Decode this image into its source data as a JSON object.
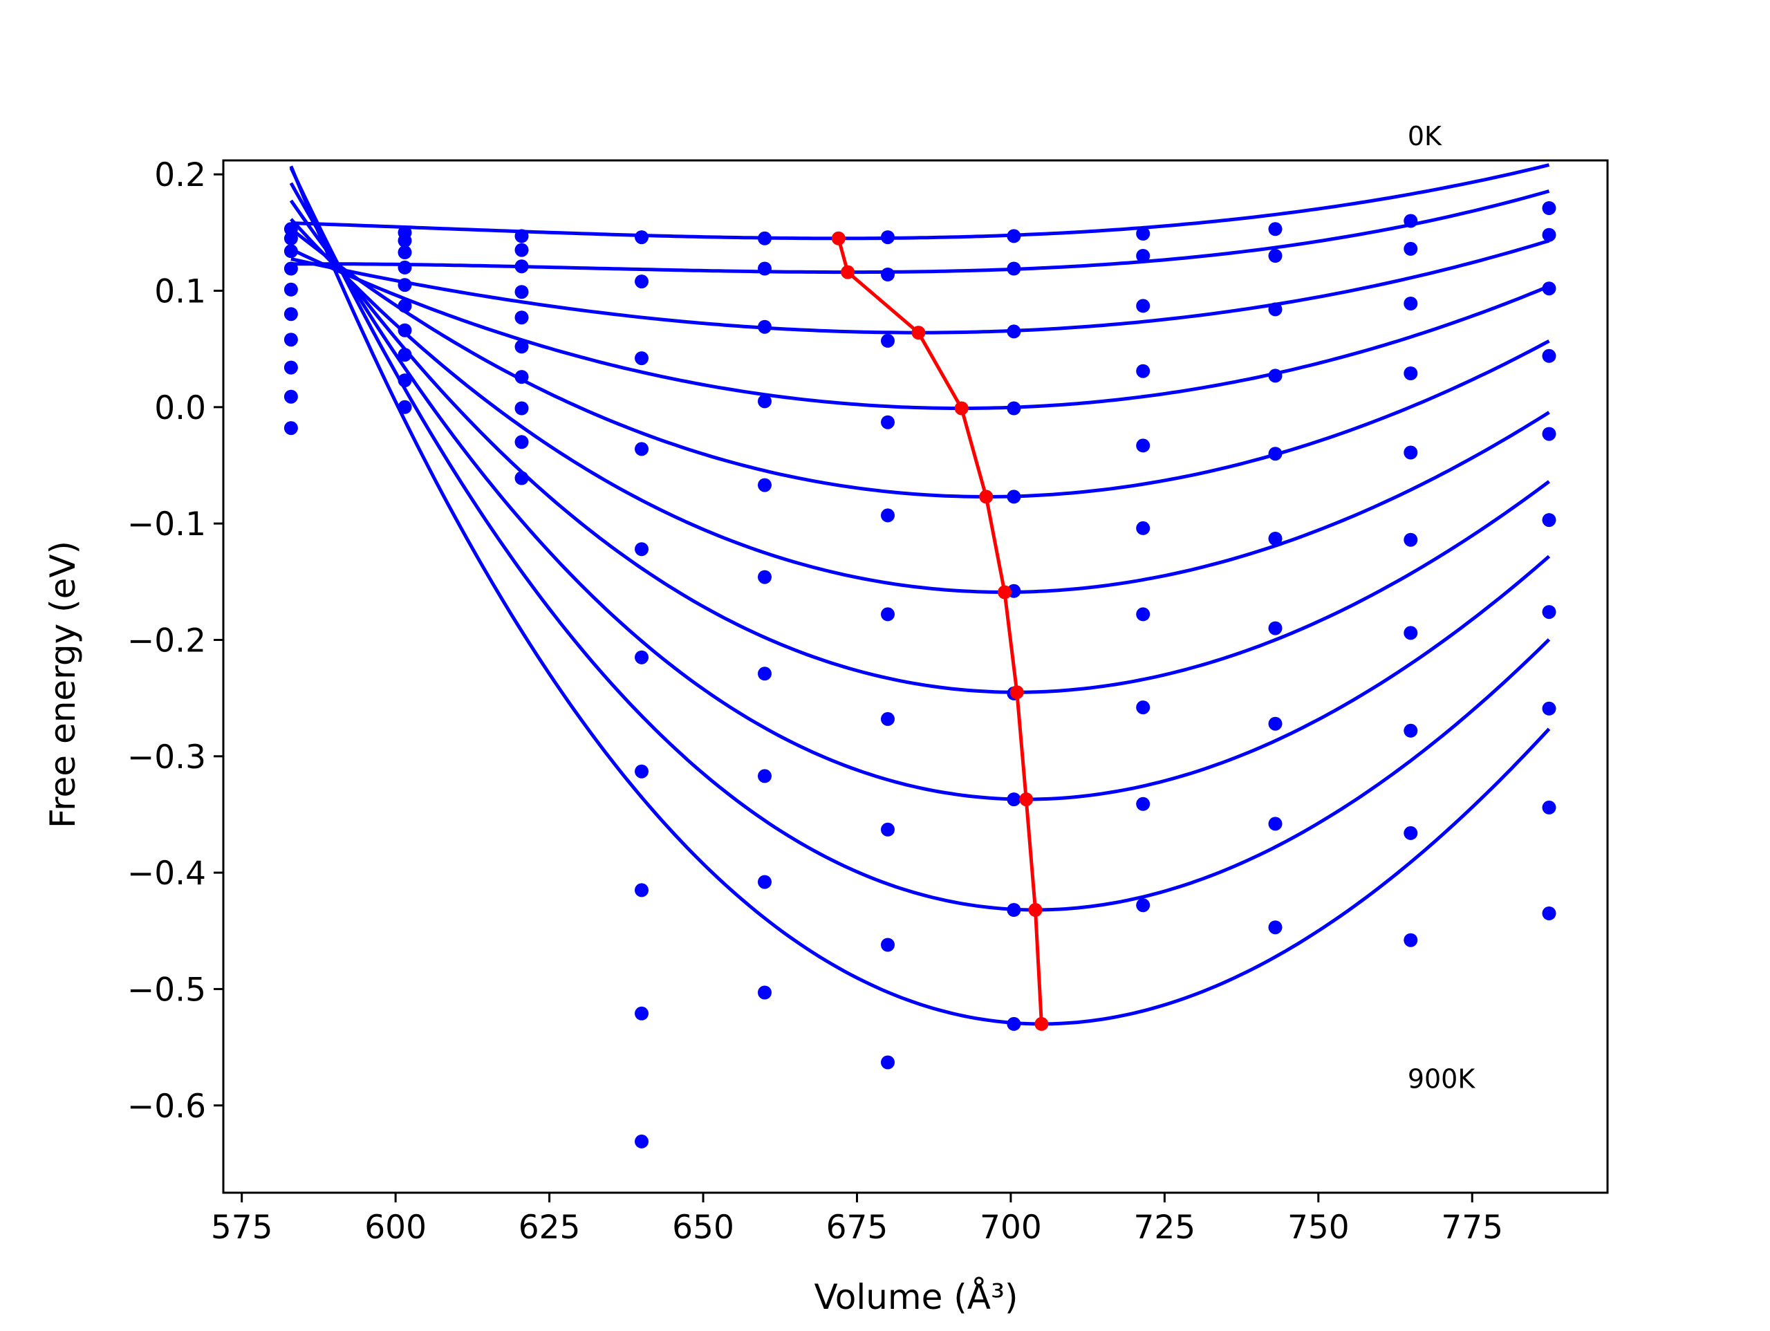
{
  "chart_data": {
    "type": "scatter",
    "title": "",
    "xlabel": "Volume (Å³)",
    "ylabel": "Free energy (eV)",
    "xlim": [
      572,
      797
    ],
    "ylim": [
      -0.675,
      0.212
    ],
    "grid": false,
    "legend": "none",
    "x_ticks": [
      575,
      600,
      625,
      650,
      675,
      700,
      725,
      750,
      775
    ],
    "x_tick_labels": [
      "575",
      "600",
      "625",
      "650",
      "675",
      "700",
      "725",
      "750",
      "775"
    ],
    "y_ticks": [
      0.2,
      0.1,
      0.0,
      -0.1,
      -0.2,
      -0.3,
      -0.4,
      -0.5,
      -0.6
    ],
    "y_tick_labels": [
      "0.2",
      "0.1",
      "0.0",
      "−0.1",
      "−0.2",
      "−0.3",
      "−0.4",
      "−0.5",
      "−0.6"
    ],
    "annotations": [
      {
        "text": "0K",
        "x": 764.5,
        "y": 0.225
      },
      {
        "text": "900K",
        "x": 764.5,
        "y": -0.585
      }
    ],
    "volumes": [
      583,
      601.5,
      620.5,
      640,
      660,
      680,
      700.5,
      721.5,
      743,
      765,
      787.5
    ],
    "points": [
      [
        0.153,
        0.15,
        0.147,
        0.146,
        0.145,
        0.146,
        0.147,
        0.149,
        0.153,
        0.16,
        0.171
      ],
      [
        0.145,
        0.143,
        0.135,
        0.108,
        0.119,
        0.114,
        0.119,
        0.13,
        0.13,
        0.136,
        0.148
      ],
      [
        0.134,
        0.133,
        0.121,
        0.042,
        0.069,
        0.057,
        0.065,
        0.087,
        0.084,
        0.089,
        0.102
      ],
      [
        0.119,
        0.12,
        0.099,
        -0.036,
        0.005,
        -0.013,
        -0.001,
        0.031,
        0.027,
        0.029,
        0.044
      ],
      [
        0.101,
        0.105,
        0.077,
        -0.122,
        -0.067,
        -0.093,
        -0.077,
        -0.033,
        -0.04,
        -0.039,
        -0.023
      ],
      [
        0.08,
        0.087,
        0.052,
        -0.215,
        -0.146,
        -0.178,
        -0.158,
        -0.104,
        -0.113,
        -0.114,
        -0.097
      ],
      [
        0.058,
        0.066,
        0.026,
        -0.313,
        -0.229,
        -0.268,
        -0.246,
        -0.178,
        -0.19,
        -0.194,
        -0.176
      ],
      [
        0.034,
        0.045,
        -0.001,
        -0.415,
        -0.317,
        -0.363,
        -0.337,
        -0.258,
        -0.272,
        -0.278,
        -0.259
      ],
      [
        0.009,
        0.023,
        -0.03,
        -0.521,
        -0.408,
        -0.462,
        -0.432,
        -0.341,
        -0.358,
        -0.366,
        -0.344
      ],
      [
        -0.018,
        0.0,
        -0.061,
        -0.631,
        -0.503,
        -0.563,
        -0.53,
        -0.428,
        -0.447,
        -0.458,
        -0.435
      ]
    ],
    "fit_curves": [
      {
        "e0": 0.145,
        "v0": 672.0,
        "a": 3e-06,
        "b": 1.5e-08
      },
      {
        "e0": 0.116,
        "v0": 673.5,
        "a": 2.85e-06,
        "b": 2.2e-08
      },
      {
        "e0": 0.064,
        "v0": 685.0,
        "a": 6.8e-06,
        "b": 7e-09
      },
      {
        "e0": -0.001,
        "v0": 692.0,
        "a": 1.15e-05,
        "b": 0
      },
      {
        "e0": -0.077,
        "v0": 696.0,
        "a": 1.69e-05,
        "b": -1e-08
      },
      {
        "e0": -0.159,
        "v0": 699.0,
        "a": 2.15e-05,
        "b": -2e-08
      },
      {
        "e0": -0.245,
        "v0": 701.0,
        "a": 2.68e-05,
        "b": -3e-08
      },
      {
        "e0": -0.337,
        "v0": 702.5,
        "a": 3.23e-05,
        "b": -4e-08
      },
      {
        "e0": -0.432,
        "v0": 704.0,
        "a": 3.75e-05,
        "b": -5e-08
      },
      {
        "e0": -0.53,
        "v0": 705.0,
        "a": 4.22e-05,
        "b": -6e-08
      }
    ],
    "fit_x_range": [
      583,
      787.5
    ],
    "minimum_path": {
      "x": [
        672.0,
        673.5,
        685.0,
        692.0,
        696.0,
        699.0,
        701.0,
        702.5,
        704.0,
        705.0
      ],
      "y": [
        0.145,
        0.116,
        0.064,
        -0.001,
        -0.077,
        -0.159,
        -0.245,
        -0.337,
        -0.432,
        -0.53
      ]
    },
    "colors": {
      "points": "#0000ff",
      "fits": "#0000ff",
      "minimum_path": "#ff0000",
      "axes": "#000000"
    }
  }
}
